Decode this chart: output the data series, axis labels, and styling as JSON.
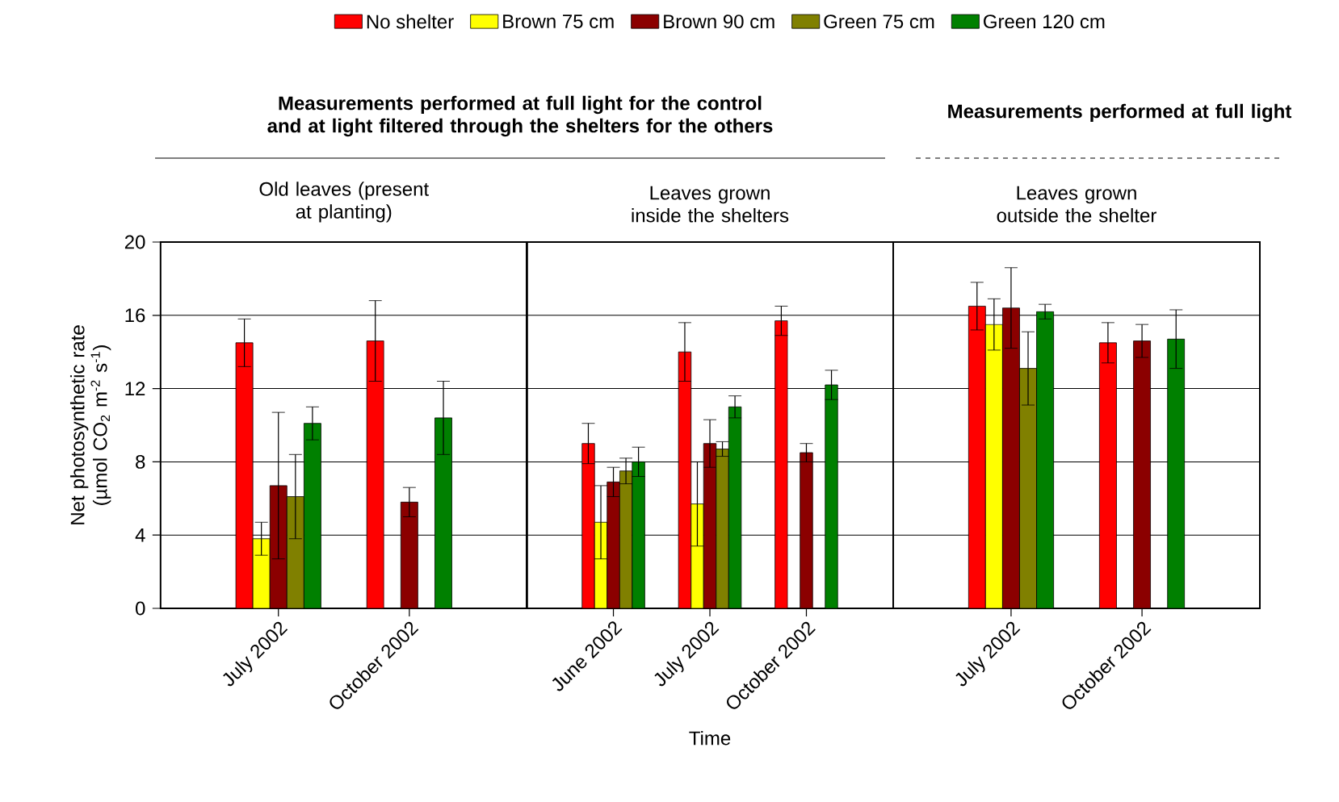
{
  "chart_data": [
    {
      "type": "bar",
      "title": "Old leaves (present at planting)",
      "ylabel": "Net photosynthetic rate (µmol CO$_{2}$ m$^{-2}$ s$^{-1}$)",
      "annotations": [
        "Measurements performed at full light for the control and at light filtered through the shelters for the others"
      ],
      "categories": [
        "July 2002",
        "October 2002"
      ],
      "ylim": [
        0,
        20
      ],
      "yticks": [
        0,
        4,
        8,
        12,
        16,
        20
      ],
      "grid": "y",
      "legend": "top",
      "series": [
        {
          "name": "No shelter",
          "color": "#ff0000",
          "values": [
            14.5,
            14.6
          ],
          "errors": [
            1.3,
            2.2
          ]
        },
        {
          "name": "Brown 75 cm",
          "color": "#ffff00",
          "values": [
            3.8,
            null
          ],
          "errors": [
            0.9,
            null
          ]
        },
        {
          "name": "Brown 90 cm",
          "color": "#8b0000",
          "values": [
            6.7,
            5.8
          ],
          "errors": [
            4.0,
            0.8
          ]
        },
        {
          "name": "Green 75 cm",
          "color": "#808000",
          "values": [
            6.1,
            null
          ],
          "errors": [
            2.3,
            null
          ]
        },
        {
          "name": "Green 120 cm",
          "color": "#008000",
          "values": [
            10.1,
            10.4
          ],
          "errors": [
            0.9,
            2.0
          ]
        }
      ]
    },
    {
      "type": "bar",
      "title": "Leaves grown inside the shelters",
      "xlabel": "Time",
      "categories": [
        "June 2002",
        "July 2002",
        "October 2002"
      ],
      "ylim": [
        0,
        20
      ],
      "yticks": [
        0,
        4,
        8,
        12,
        16,
        20
      ],
      "grid": "y",
      "tick_labels": "x",
      "series": [
        {
          "color": "#ff0000",
          "values": [
            9.0,
            14.0,
            15.7
          ],
          "errors": [
            1.1,
            1.6,
            0.8
          ]
        },
        {
          "color": "#ffff00",
          "values": [
            4.7,
            5.7,
            null
          ],
          "errors": [
            2.0,
            2.3,
            null
          ]
        },
        {
          "color": "#8b0000",
          "values": [
            6.9,
            9.0,
            8.5
          ],
          "errors": [
            0.8,
            1.3,
            0.5
          ]
        },
        {
          "color": "#808000",
          "values": [
            7.5,
            8.7,
            null
          ],
          "errors": [
            0.7,
            0.4,
            null
          ]
        },
        {
          "color": "#008000",
          "values": [
            8.0,
            11.0,
            12.2
          ],
          "errors": [
            0.8,
            0.6,
            0.8
          ]
        }
      ]
    },
    {
      "type": "bar",
      "title": "Leaves grown outside the shelter",
      "annotations": [
        "Measurements performed at full light"
      ],
      "categories": [
        "July 2002",
        "October 2002"
      ],
      "ylim": [
        0,
        20
      ],
      "yticks": [
        0,
        4,
        8,
        12,
        16,
        20
      ],
      "grid": "y",
      "tick_labels": "x",
      "series": [
        {
          "color": "#ff0000",
          "values": [
            16.5,
            14.5
          ],
          "errors": [
            1.3,
            1.1
          ]
        },
        {
          "color": "#ffff00",
          "values": [
            15.5,
            null
          ],
          "errors": [
            1.4,
            null
          ]
        },
        {
          "color": "#8b0000",
          "values": [
            16.4,
            14.6
          ],
          "errors": [
            2.2,
            0.9
          ]
        },
        {
          "color": "#808000",
          "values": [
            13.1,
            null
          ],
          "errors": [
            2.0,
            null
          ]
        },
        {
          "color": "#008000",
          "values": [
            16.2,
            14.7
          ],
          "errors": [
            0.4,
            1.6
          ]
        }
      ]
    }
  ]
}
